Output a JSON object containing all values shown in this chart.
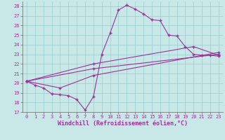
{
  "xlabel": "Windchill (Refroidissement éolien,°C)",
  "xlim": [
    -0.5,
    23.5
  ],
  "ylim": [
    17,
    28.5
  ],
  "xticks": [
    0,
    1,
    2,
    3,
    4,
    5,
    6,
    7,
    8,
    9,
    10,
    11,
    12,
    13,
    14,
    15,
    16,
    17,
    18,
    19,
    20,
    21,
    22,
    23
  ],
  "yticks": [
    17,
    18,
    19,
    20,
    21,
    22,
    23,
    24,
    25,
    26,
    27,
    28
  ],
  "bg_color": "#c8e8e8",
  "line_color": "#993399",
  "grid_color": "#99cccc",
  "line1_x": [
    0,
    1,
    2,
    3,
    4,
    5,
    6,
    7,
    8,
    9,
    10,
    11,
    12,
    13,
    14,
    15,
    16,
    17,
    18,
    19,
    20,
    21,
    22,
    23
  ],
  "line1_y": [
    20.2,
    19.8,
    19.5,
    18.9,
    18.8,
    18.7,
    18.3,
    17.2,
    18.6,
    23.0,
    25.2,
    27.6,
    28.1,
    27.7,
    27.2,
    26.6,
    26.5,
    25.0,
    24.9,
    23.8,
    23.0,
    22.9,
    22.9,
    22.8
  ],
  "line2_x": [
    0,
    4,
    8,
    23
  ],
  "line2_y": [
    20.2,
    19.5,
    20.8,
    23.2
  ],
  "line3_x": [
    0,
    8,
    23
  ],
  "line3_y": [
    20.2,
    21.5,
    23.0
  ],
  "line4_x": [
    0,
    8,
    20,
    23
  ],
  "line4_y": [
    20.2,
    22.0,
    23.8,
    22.9
  ],
  "marker": "+",
  "markersize": 3.5,
  "linewidth": 0.8,
  "tick_fontsize": 5,
  "xlabel_fontsize": 6
}
